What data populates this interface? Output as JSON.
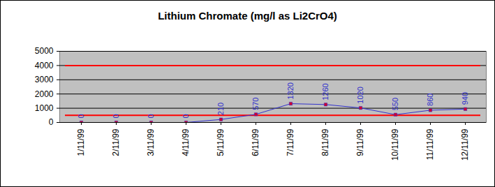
{
  "chart_data": {
    "type": "line",
    "title": "Lithium Chromate (mg/l as Li2CrO4)",
    "categories": [
      "1/11/99",
      "2/11/99",
      "3/11/99",
      "4/11/99",
      "5/11/99",
      "6/11/99",
      "7/11/99",
      "8/11/99",
      "9/11/99",
      "10/11/99",
      "11/11/99",
      "12/11/99"
    ],
    "values": [
      0,
      0,
      0,
      0,
      210,
      570,
      1320,
      1260,
      1020,
      550,
      860,
      940
    ],
    "color": "#3333cc",
    "marker": "square",
    "data_labels": true,
    "limit_lines": {
      "values": [
        500,
        4000
      ],
      "color": "#ff0000"
    },
    "ylim": [
      0,
      5000
    ],
    "yticks": [
      0,
      1000,
      2000,
      3000,
      4000,
      5000
    ],
    "grid": true
  }
}
